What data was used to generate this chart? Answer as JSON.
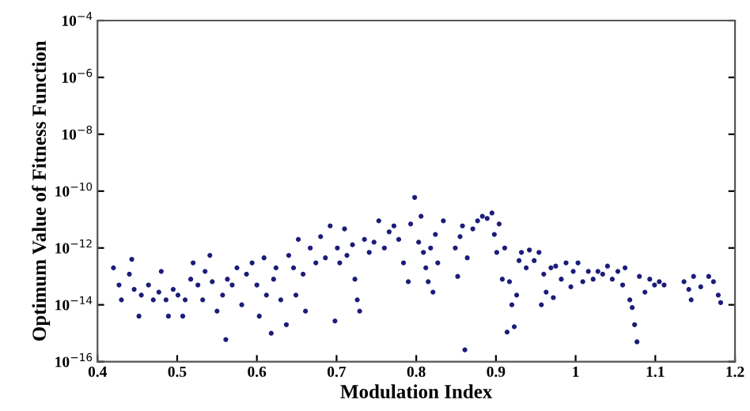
{
  "chart_data": {
    "type": "scatter",
    "xlabel": "Modulation Index",
    "ylabel": "Optimum Value of Fitness Function",
    "log": "y",
    "grid": false,
    "marker": "circle",
    "xlim": [
      0.4,
      1.2
    ],
    "xticks": [
      0.4,
      0.5,
      0.6,
      0.7,
      0.8,
      0.9,
      1,
      1.1,
      1.2
    ],
    "ylim": [
      1e-16,
      0.0001
    ],
    "yticks": [
      {
        "value": 1e-16,
        "label": "10$^{−16}$"
      },
      {
        "value": 1e-14,
        "label": "10$^{−14}$"
      },
      {
        "value": 1e-12,
        "label": "10$^{−12}$"
      },
      {
        "value": 1e-10,
        "label": "10$^{−10}$"
      },
      {
        "value": 1e-08,
        "label": "10$^{−8}$"
      },
      {
        "value": 1e-06,
        "label": "10$^{−6}$"
      },
      {
        "value": 0.0001,
        "label": "10$^{−4}$"
      }
    ],
    "series": [
      {
        "color": "#1c1c7a",
        "x": [
          0.42,
          0.427,
          0.43,
          0.44,
          0.443,
          0.446,
          0.452,
          0.455,
          0.464,
          0.47,
          0.477,
          0.48,
          0.486,
          0.489,
          0.495,
          0.501,
          0.507,
          0.51,
          0.517,
          0.52,
          0.526,
          0.532,
          0.535,
          0.541,
          0.544,
          0.55,
          0.557,
          0.561,
          0.563,
          0.569,
          0.575,
          0.581,
          0.587,
          0.594,
          0.6,
          0.603,
          0.609,
          0.612,
          0.618,
          0.621,
          0.624,
          0.63,
          0.637,
          0.64,
          0.646,
          0.649,
          0.652,
          0.658,
          0.661,
          0.667,
          0.674,
          0.68,
          0.686,
          0.692,
          0.698,
          0.701,
          0.704,
          0.71,
          0.713,
          0.72,
          0.723,
          0.726,
          0.729,
          0.735,
          0.741,
          0.747,
          0.753,
          0.76,
          0.766,
          0.772,
          0.778,
          0.784,
          0.79,
          0.793,
          0.798,
          0.803,
          0.806,
          0.809,
          0.812,
          0.815,
          0.818,
          0.821,
          0.824,
          0.827,
          0.834,
          0.849,
          0.852,
          0.855,
          0.858,
          0.861,
          0.864,
          0.871,
          0.877,
          0.883,
          0.889,
          0.895,
          0.898,
          0.901,
          0.904,
          0.908,
          0.911,
          0.914,
          0.917,
          0.92,
          0.923,
          0.926,
          0.929,
          0.932,
          0.938,
          0.942,
          0.948,
          0.954,
          0.957,
          0.96,
          0.963,
          0.969,
          0.972,
          0.975,
          0.982,
          0.988,
          0.994,
          0.997,
          1.003,
          1.009,
          1.016,
          1.022,
          1.028,
          1.034,
          1.04,
          1.046,
          1.053,
          1.059,
          1.062,
          1.068,
          1.071,
          1.074,
          1.077,
          1.08,
          1.087,
          1.093,
          1.099,
          1.105,
          1.111,
          1.136,
          1.142,
          1.145,
          1.148,
          1.157,
          1.167,
          1.173,
          1.179,
          1.182
        ],
        "values": [
          2e-13,
          5e-14,
          1.5e-14,
          1.2e-13,
          4e-13,
          3.5e-14,
          4e-15,
          2.2e-14,
          5e-14,
          1.5e-14,
          2.8e-14,
          1.5e-13,
          1.5e-14,
          4e-15,
          3.5e-14,
          2.2e-14,
          4e-15,
          1.5e-14,
          8e-14,
          3e-13,
          5e-14,
          1.5e-14,
          1.5e-13,
          5.5e-13,
          6.5e-14,
          6e-15,
          2.2e-14,
          6e-16,
          8e-14,
          5e-14,
          2e-13,
          1e-14,
          1.2e-13,
          3e-13,
          5e-14,
          4e-15,
          4.5e-13,
          2.2e-14,
          1e-15,
          8e-14,
          2e-13,
          1.5e-14,
          2e-15,
          5.5e-13,
          2e-13,
          2.2e-14,
          2e-12,
          1.2e-13,
          6e-15,
          1e-12,
          3e-13,
          2.5e-12,
          4.5e-13,
          6e-12,
          2.7e-15,
          1e-12,
          3e-13,
          4.7e-12,
          5.5e-13,
          1.3e-12,
          8e-14,
          1.5e-14,
          6e-15,
          2e-12,
          7e-13,
          1.6e-12,
          9e-12,
          1e-12,
          3.7e-12,
          6e-12,
          2e-12,
          3e-13,
          6.5e-14,
          7e-12,
          6e-11,
          1.6e-12,
          1.3e-11,
          7e-13,
          2e-13,
          6.5e-14,
          1e-12,
          2.8e-14,
          3e-12,
          3e-13,
          9e-12,
          1e-12,
          1e-13,
          2.5e-12,
          6e-12,
          2.6e-16,
          4.5e-13,
          4.7e-12,
          9e-12,
          1.3e-11,
          1.1e-11,
          1.7e-11,
          3e-12,
          7e-13,
          7e-12,
          8e-14,
          1e-12,
          1.1e-15,
          6.5e-14,
          1e-14,
          1.7e-15,
          2.2e-14,
          3.6e-13,
          7e-13,
          2e-13,
          8.5e-13,
          3.6e-13,
          7e-13,
          1e-14,
          1.2e-13,
          2.8e-14,
          2e-13,
          1.8e-14,
          2.3e-13,
          8e-14,
          3e-13,
          4.3e-14,
          1.5e-13,
          3e-13,
          6.5e-14,
          1.5e-13,
          8e-14,
          1.5e-13,
          1.2e-13,
          2.3e-13,
          8e-14,
          1.5e-13,
          5e-14,
          2e-13,
          1.5e-14,
          8e-15,
          2e-15,
          5e-16,
          1e-13,
          2.8e-14,
          8e-14,
          5e-14,
          6.5e-14,
          5e-14,
          6.5e-14,
          3.5e-14,
          1.5e-14,
          1e-13,
          4.3e-14,
          1e-13,
          6.5e-14,
          2.2e-14,
          1.2e-14
        ]
      }
    ]
  }
}
